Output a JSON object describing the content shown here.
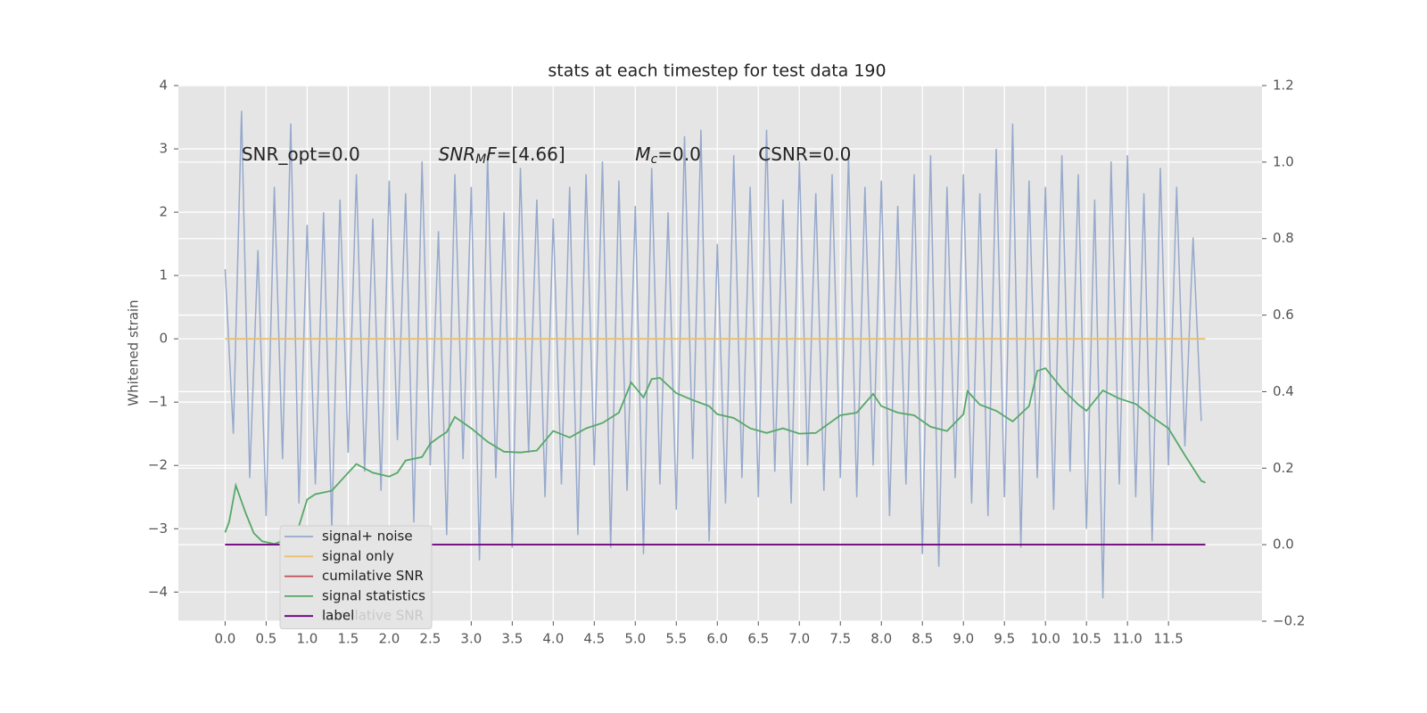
{
  "chart_data": {
    "type": "line",
    "title": "stats at each timestep for test data 190",
    "ylabel": "Whitened strain",
    "xlim": [
      -0.57,
      12.64
    ],
    "ylim": [
      -4.46,
      4.0
    ],
    "y2lim": [
      -0.2,
      1.2
    ],
    "xticks": [
      {
        "value": 0,
        "label": "0.0"
      },
      {
        "value": 0.5,
        "label": "0.5"
      },
      {
        "value": 1,
        "label": "1.0"
      },
      {
        "value": 1.5,
        "label": "1.5"
      },
      {
        "value": 2,
        "label": "2.0"
      },
      {
        "value": 2.5,
        "label": "2.5"
      },
      {
        "value": 3,
        "label": "3.0"
      },
      {
        "value": 3.5,
        "label": "3.5"
      },
      {
        "value": 4,
        "label": "4.0"
      },
      {
        "value": 4.5,
        "label": "4.5"
      },
      {
        "value": 5,
        "label": "5.0"
      },
      {
        "value": 5.5,
        "label": "5.5"
      },
      {
        "value": 6,
        "label": "6.0"
      },
      {
        "value": 6.5,
        "label": "6.5"
      },
      {
        "value": 7,
        "label": "7.0"
      },
      {
        "value": 7.5,
        "label": "7.5"
      },
      {
        "value": 8,
        "label": "8.0"
      },
      {
        "value": 8.5,
        "label": "8.5"
      },
      {
        "value": 9,
        "label": "9.0"
      },
      {
        "value": 9.5,
        "label": "9.5"
      },
      {
        "value": 10,
        "label": "10.0"
      },
      {
        "value": 10.5,
        "label": "10.5"
      },
      {
        "value": 11,
        "label": "11.0"
      },
      {
        "value": 11.5,
        "label": "11.5"
      }
    ],
    "yticks": [
      {
        "value": -4,
        "label": "−4"
      },
      {
        "value": -3,
        "label": "−3"
      },
      {
        "value": -2,
        "label": "−2"
      },
      {
        "value": -1,
        "label": "−1"
      },
      0,
      1,
      2,
      3,
      4
    ],
    "y2ticks": [
      {
        "value": -0.2,
        "label": "−0.2"
      },
      {
        "value": 0,
        "label": "0.0"
      },
      {
        "value": 0.2,
        "label": "0.2"
      },
      {
        "value": 0.4,
        "label": "0.4"
      },
      {
        "value": 0.6,
        "label": "0.6"
      },
      {
        "value": 0.8,
        "label": "0.8"
      },
      {
        "value": 1.0,
        "label": "1.0"
      },
      {
        "value": 1.2,
        "label": "1.2"
      }
    ],
    "grid": true,
    "legend_loc": "lower left",
    "annotations": [
      {
        "x": 0.2,
        "y": 2.9,
        "parts": [
          {
            "text": "SNR_opt=0.0",
            "style": "normal"
          }
        ]
      },
      {
        "x": 2.6,
        "y": 2.9,
        "parts": [
          {
            "text": "SNR",
            "style": "italic"
          },
          {
            "text": "M",
            "style": "sub-italic"
          },
          {
            "text": "F",
            "style": "italic"
          },
          {
            "text": "=[4.66]",
            "style": "normal"
          }
        ]
      },
      {
        "x": 5.0,
        "y": 2.9,
        "parts": [
          {
            "text": "M",
            "style": "italic"
          },
          {
            "text": "c",
            "style": "sub-italic"
          },
          {
            "text": "=0.0",
            "style": "normal"
          }
        ]
      },
      {
        "x": 6.5,
        "y": 2.9,
        "parts": [
          {
            "text": "CSNR=0.0",
            "style": "normal"
          }
        ]
      }
    ],
    "ghost_legend": "cumilative SNR",
    "series": [
      {
        "name": "signal+ noise",
        "color": "#97a9cc",
        "axis": "y",
        "x": [
          0,
          0.1,
          0.2,
          0.3,
          0.4,
          0.5,
          0.6,
          0.7,
          0.8,
          0.9,
          1,
          1.1,
          1.2,
          1.3,
          1.4,
          1.5,
          1.6,
          1.7,
          1.8,
          1.9,
          2,
          2.1,
          2.2,
          2.3,
          2.4,
          2.5,
          2.6,
          2.7,
          2.8,
          2.9,
          3,
          3.1,
          3.2,
          3.3,
          3.4,
          3.5,
          3.6,
          3.7,
          3.8,
          3.9,
          4,
          4.1,
          4.2,
          4.3,
          4.4,
          4.5,
          4.6,
          4.7,
          4.8,
          4.9,
          5,
          5.1,
          5.2,
          5.3,
          5.4,
          5.5,
          5.6,
          5.7,
          5.8,
          5.9,
          6,
          6.1,
          6.2,
          6.3,
          6.4,
          6.5,
          6.6,
          6.7,
          6.8,
          6.9,
          7,
          7.1,
          7.2,
          7.3,
          7.4,
          7.5,
          7.6,
          7.7,
          7.8,
          7.9,
          8,
          8.1,
          8.2,
          8.3,
          8.4,
          8.5,
          8.6,
          8.7,
          8.8,
          8.9,
          9,
          9.1,
          9.2,
          9.3,
          9.4,
          9.5,
          9.6,
          9.7,
          9.8,
          9.9,
          10,
          10.1,
          10.2,
          10.3,
          10.4,
          10.5,
          10.6,
          10.7,
          10.8,
          10.9,
          11,
          11.1,
          11.2,
          11.3,
          11.4,
          11.5,
          11.6,
          11.7,
          11.8,
          11.9
        ],
        "values": [
          1.1,
          -1.5,
          3.6,
          -2.2,
          1.4,
          -2.8,
          2.4,
          -1.9,
          3.4,
          -2.6,
          1.8,
          -2.3,
          2.0,
          -3.0,
          2.2,
          -1.8,
          2.6,
          -2.1,
          1.9,
          -2.4,
          2.5,
          -1.6,
          2.3,
          -2.9,
          2.8,
          -2.0,
          1.7,
          -3.1,
          2.6,
          -1.9,
          2.4,
          -3.5,
          2.9,
          -2.2,
          2.0,
          -3.3,
          2.7,
          -1.8,
          2.2,
          -2.5,
          1.9,
          -2.3,
          2.4,
          -3.1,
          2.6,
          -2.0,
          2.8,
          -3.3,
          2.5,
          -2.4,
          2.1,
          -3.4,
          2.7,
          -2.3,
          2.0,
          -2.7,
          3.2,
          -1.9,
          3.3,
          -3.2,
          1.5,
          -2.6,
          2.9,
          -2.2,
          2.4,
          -2.5,
          3.3,
          -2.1,
          2.2,
          -2.6,
          2.8,
          -2.0,
          2.3,
          -2.4,
          2.6,
          -2.2,
          2.9,
          -2.5,
          2.4,
          -2.0,
          2.5,
          -2.8,
          2.1,
          -2.3,
          2.6,
          -3.4,
          2.9,
          -3.6,
          2.4,
          -2.2,
          2.6,
          -2.6,
          2.3,
          -2.8,
          3.0,
          -2.5,
          3.4,
          -3.3,
          2.5,
          -2.2,
          2.4,
          -2.7,
          2.9,
          -2.1,
          2.6,
          -3.0,
          2.2,
          -4.1,
          2.8,
          -2.3,
          2.9,
          -2.5,
          2.3,
          -3.2,
          2.7,
          -2.0,
          2.4,
          -1.7,
          1.6,
          -1.3
        ]
      },
      {
        "name": "signal only",
        "color": "#e8c170",
        "axis": "y",
        "x": [
          0,
          11.95
        ],
        "values": [
          0,
          0
        ]
      },
      {
        "name": "cumilative SNR",
        "color": "#c44e52",
        "axis": "y2",
        "x": [
          0,
          11.95
        ],
        "values": [
          0,
          0
        ]
      },
      {
        "name": "signal statistics",
        "color": "#55a868",
        "axis": "y2",
        "x": [
          0,
          0.05,
          0.13,
          0.25,
          0.35,
          0.45,
          0.6,
          0.75,
          0.9,
          1.0,
          1.1,
          1.3,
          1.5,
          1.6,
          1.8,
          2.0,
          2.1,
          2.2,
          2.4,
          2.5,
          2.6,
          2.7,
          2.8,
          3.0,
          3.2,
          3.4,
          3.6,
          3.8,
          4.0,
          4.2,
          4.4,
          4.6,
          4.8,
          4.95,
          5.1,
          5.2,
          5.3,
          5.5,
          5.7,
          5.9,
          6.0,
          6.2,
          6.4,
          6.6,
          6.8,
          7.0,
          7.2,
          7.5,
          7.7,
          7.9,
          8.0,
          8.2,
          8.4,
          8.6,
          8.8,
          9.0,
          9.05,
          9.2,
          9.4,
          9.6,
          9.8,
          9.9,
          10.0,
          10.2,
          10.4,
          10.5,
          10.7,
          10.9,
          11.1,
          11.3,
          11.5,
          11.7,
          11.9,
          11.95
        ],
        "values": [
          0.032,
          0.06,
          0.155,
          0.083,
          0.03,
          0.009,
          0.002,
          0.014,
          0.049,
          0.118,
          0.132,
          0.141,
          0.188,
          0.211,
          0.188,
          0.178,
          0.188,
          0.22,
          0.229,
          0.264,
          0.28,
          0.294,
          0.334,
          0.304,
          0.269,
          0.243,
          0.241,
          0.246,
          0.297,
          0.28,
          0.304,
          0.318,
          0.345,
          0.424,
          0.385,
          0.433,
          0.436,
          0.396,
          0.378,
          0.362,
          0.341,
          0.331,
          0.304,
          0.292,
          0.304,
          0.29,
          0.292,
          0.338,
          0.345,
          0.394,
          0.362,
          0.345,
          0.338,
          0.308,
          0.297,
          0.341,
          0.401,
          0.366,
          0.35,
          0.322,
          0.362,
          0.454,
          0.461,
          0.408,
          0.366,
          0.35,
          0.403,
          0.382,
          0.368,
          0.334,
          0.304,
          0.234,
          0.167,
          0.162
        ]
      },
      {
        "name": "label",
        "color": "#6a0080",
        "axis": "y2",
        "x": [
          0,
          11.95
        ],
        "values": [
          0,
          0
        ]
      }
    ]
  }
}
